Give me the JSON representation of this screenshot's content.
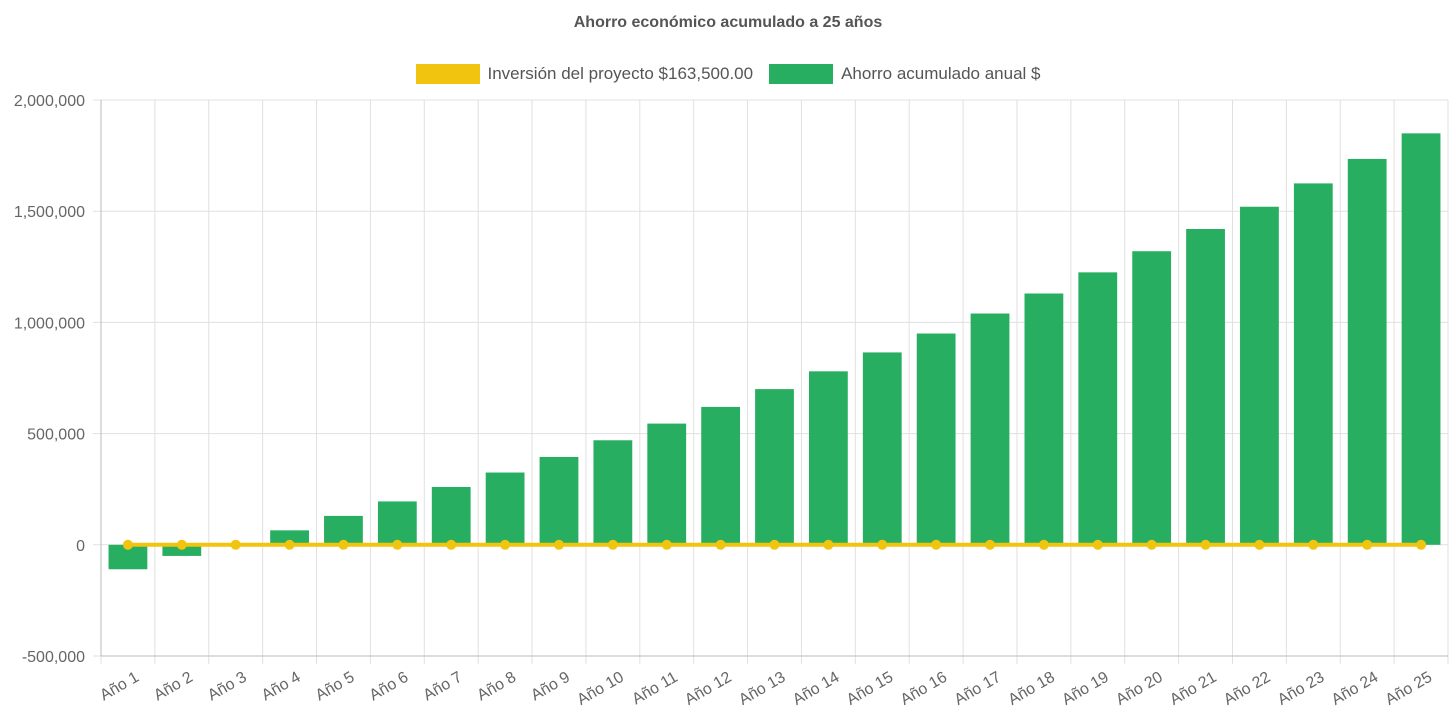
{
  "chart_data": {
    "type": "bar",
    "title": "Ahorro económico acumulado a 25 años",
    "categories": [
      "Año 1",
      "Año 2",
      "Año 3",
      "Año 4",
      "Año 5",
      "Año 6",
      "Año 7",
      "Año 8",
      "Año 9",
      "Año 10",
      "Año 11",
      "Año 12",
      "Año 13",
      "Año 14",
      "Año 15",
      "Año 16",
      "Año 17",
      "Año 18",
      "Año 19",
      "Año 20",
      "Año 21",
      "Año 22",
      "Año 23",
      "Año 24",
      "Año 25"
    ],
    "series": [
      {
        "name": "Inversión del proyecto $163,500.00",
        "type": "line",
        "color": "#f1c40f",
        "values": [
          0,
          0,
          0,
          0,
          0,
          0,
          0,
          0,
          0,
          0,
          0,
          0,
          0,
          0,
          0,
          0,
          0,
          0,
          0,
          0,
          0,
          0,
          0,
          0,
          0
        ]
      },
      {
        "name": "Ahorro acumulado anual $",
        "type": "bar",
        "color": "#27ae60",
        "values": [
          -110000,
          -50000,
          0,
          65000,
          130000,
          195000,
          260000,
          325000,
          395000,
          470000,
          545000,
          620000,
          700000,
          780000,
          865000,
          950000,
          1040000,
          1130000,
          1225000,
          1320000,
          1420000,
          1520000,
          1625000,
          1735000,
          1850000
        ]
      }
    ],
    "yticks": [
      "2,000,000",
      "1,500,000",
      "1,000,000",
      "500,000",
      "0",
      "-500,000"
    ],
    "ytick_values": [
      2000000,
      1500000,
      1000000,
      500000,
      0,
      -500000
    ],
    "ylim": [
      -500000,
      2000000
    ],
    "grid": true,
    "legend": "top-center"
  }
}
